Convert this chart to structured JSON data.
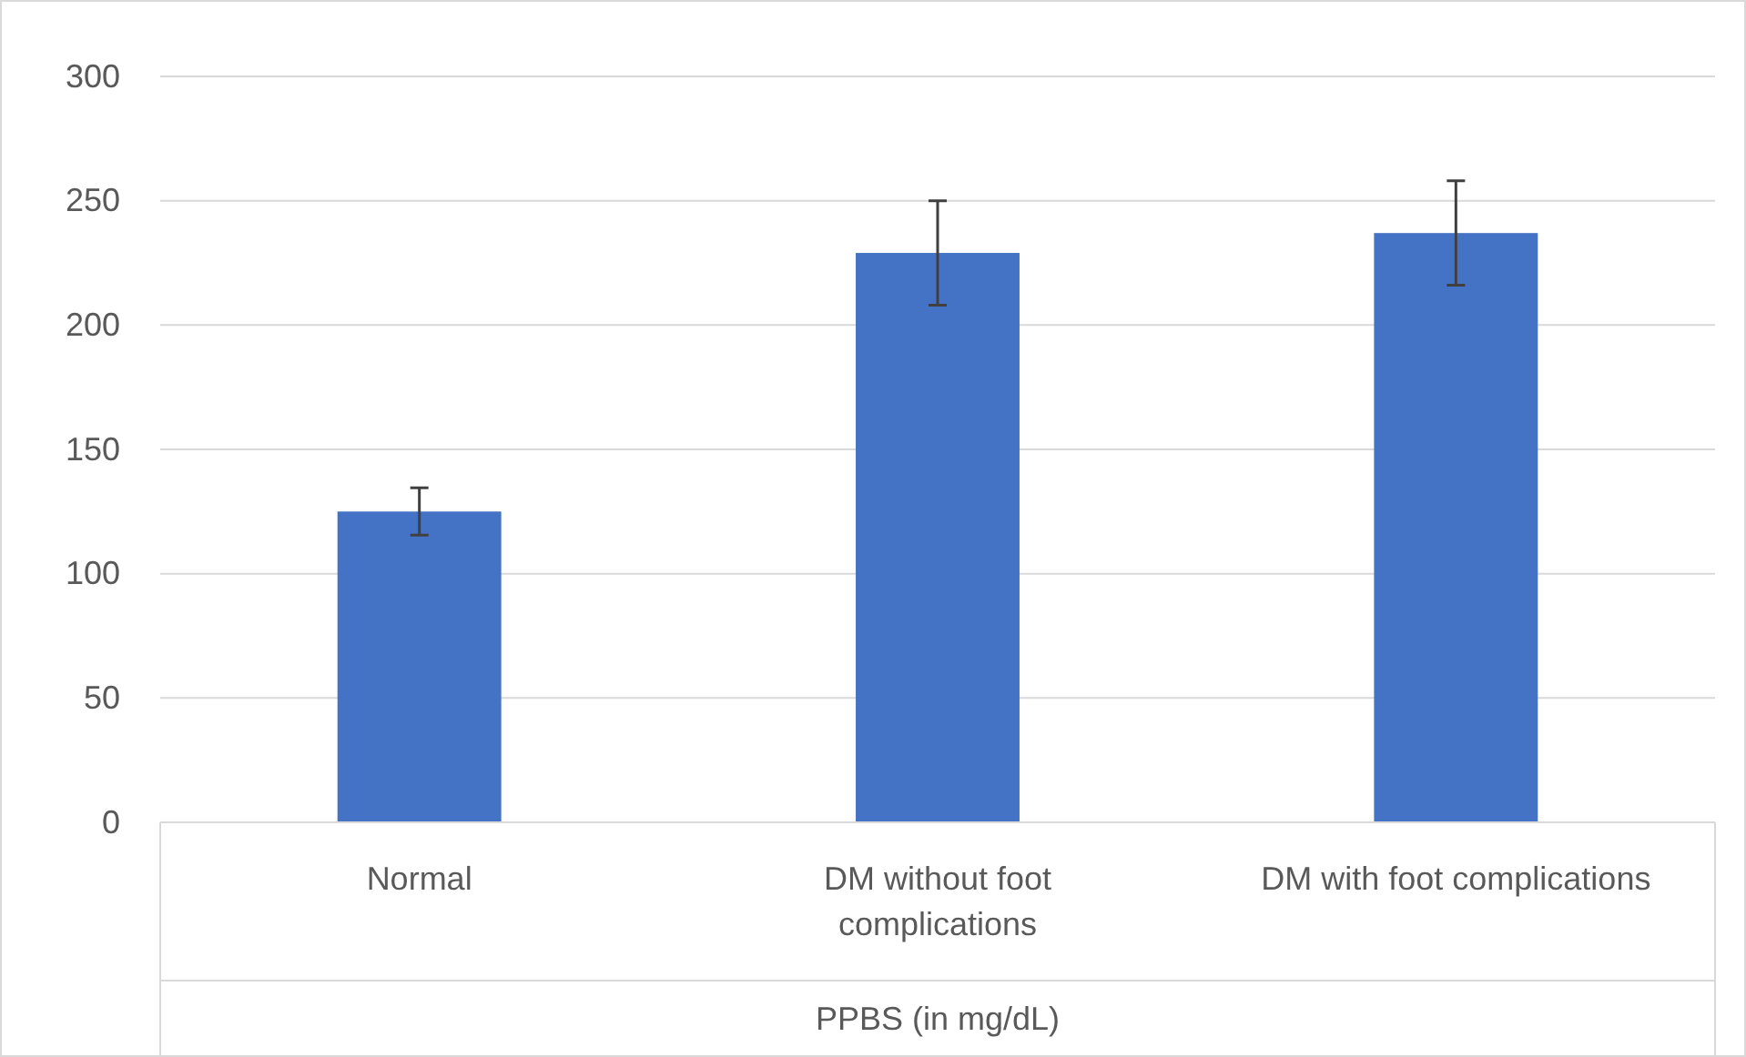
{
  "chart_data": {
    "type": "bar",
    "xlabel": "PPBS (in mg/dL)",
    "categories": [
      "Normal",
      "DM without foot complications",
      "DM with foot complications"
    ],
    "values": [
      125,
      229,
      237
    ],
    "errors": [
      9.5,
      21,
      21
    ],
    "color": "#4472c4",
    "ylim": [
      0,
      300
    ],
    "yticks": [
      0,
      50,
      100,
      150,
      200,
      250,
      300
    ],
    "grid": "y"
  }
}
